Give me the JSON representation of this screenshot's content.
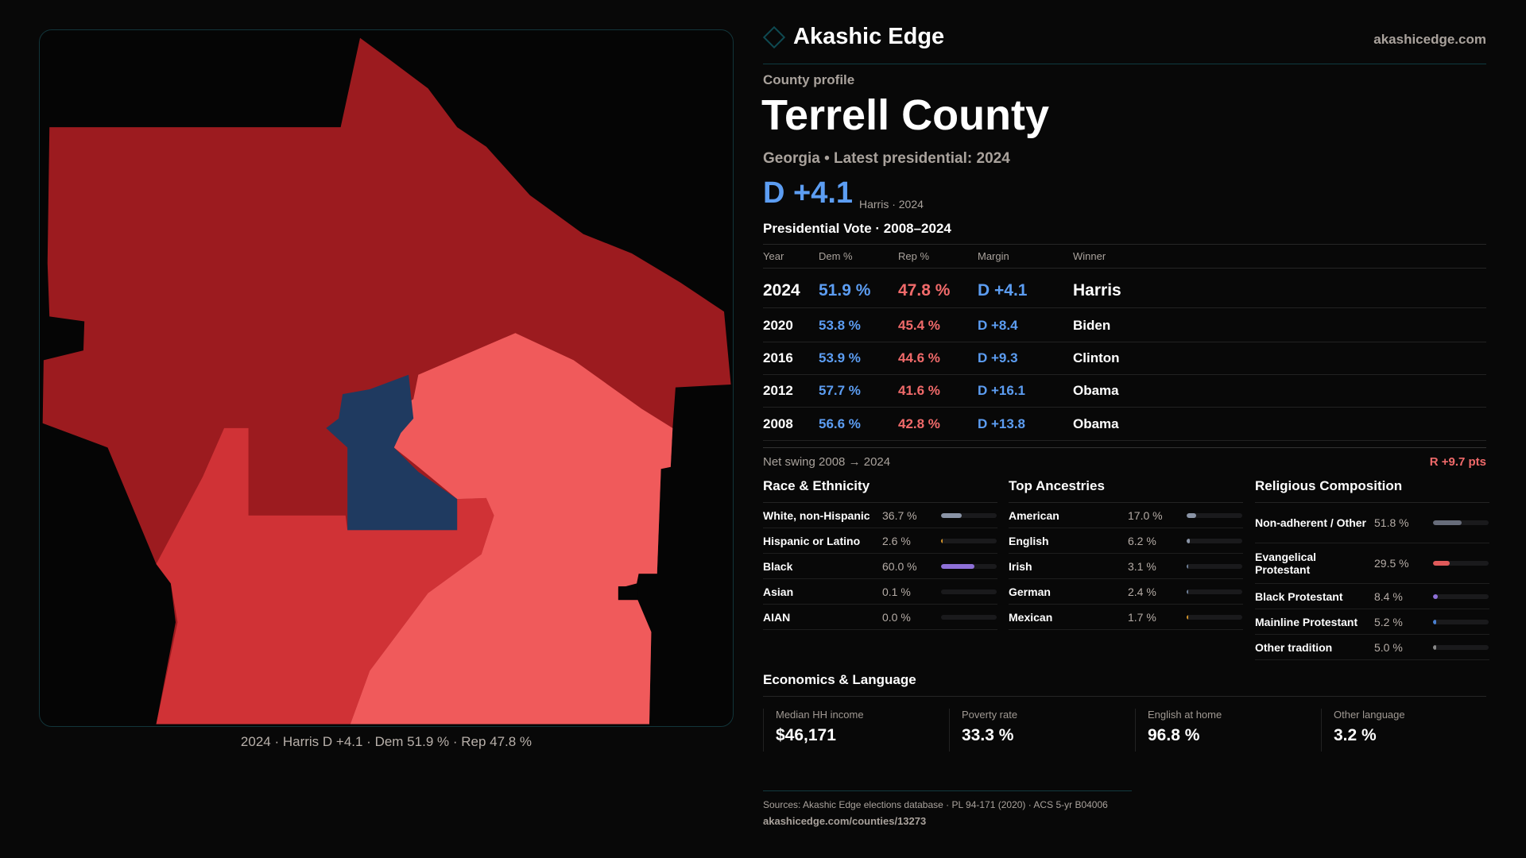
{
  "brand": {
    "name": "Akashic Edge",
    "site": "akashicedge.com"
  },
  "map": {
    "caption": "2024 · Harris D +4.1 · Dem 51.9 % · Rep 47.8 %",
    "colors": {
      "dark_red": "#9c1b1f",
      "mid_red": "#d03236",
      "light_red": "#f05a5b",
      "blue": "#1f3a60"
    }
  },
  "profile": {
    "kicker": "County profile",
    "title": "Terrell County",
    "subtitle": "Georgia • Latest presidential: 2024",
    "margin": "D +4.1",
    "margin_note": "Harris · 2024"
  },
  "votes": {
    "heading": "Presidential Vote · 2008–2024",
    "headers": [
      "Year",
      "Dem %",
      "Rep %",
      "Margin",
      "Winner"
    ],
    "rows": [
      {
        "year": "2024",
        "dem": "51.9 %",
        "rep": "47.8 %",
        "margin": "D +4.1",
        "winner": "Harris"
      },
      {
        "year": "2020",
        "dem": "53.8 %",
        "rep": "45.4 %",
        "margin": "D +8.4",
        "winner": "Biden"
      },
      {
        "year": "2016",
        "dem": "53.9 %",
        "rep": "44.6 %",
        "margin": "D +9.3",
        "winner": "Clinton"
      },
      {
        "year": "2012",
        "dem": "57.7 %",
        "rep": "41.6 %",
        "margin": "D +16.1",
        "winner": "Obama"
      },
      {
        "year": "2008",
        "dem": "56.6 %",
        "rep": "42.8 %",
        "margin": "D +13.8",
        "winner": "Obama"
      }
    ],
    "swing_label": "Net swing 2008 → 2024",
    "swing_value": "R +9.7 pts"
  },
  "race": {
    "heading": "Race & Ethnicity",
    "items": [
      {
        "label": "White, non-Hispanic",
        "value": "36.7 %",
        "pct": 36.7,
        "color": "#8a94a6"
      },
      {
        "label": "Hispanic or Latino",
        "value": "2.6 %",
        "pct": 2.6,
        "color": "#d6962a"
      },
      {
        "label": "Black",
        "value": "60.0 %",
        "pct": 60.0,
        "color": "#8e70d8"
      },
      {
        "label": "Asian",
        "value": "0.1 %",
        "pct": 0.1,
        "color": "#555"
      },
      {
        "label": "AIAN",
        "value": "0.0 %",
        "pct": 0.0,
        "color": "#555"
      }
    ]
  },
  "ancestry": {
    "heading": "Top Ancestries",
    "items": [
      {
        "label": "American",
        "value": "17.0 %",
        "pct": 17.0,
        "color": "#8a94a6"
      },
      {
        "label": "English",
        "value": "6.2 %",
        "pct": 6.2,
        "color": "#8a94a6"
      },
      {
        "label": "Irish",
        "value": "3.1 %",
        "pct": 3.1,
        "color": "#6f8098"
      },
      {
        "label": "German",
        "value": "2.4 %",
        "pct": 2.4,
        "color": "#6f8098"
      },
      {
        "label": "Mexican",
        "value": "1.7 %",
        "pct": 1.7,
        "color": "#d6962a"
      }
    ]
  },
  "religion": {
    "heading": "Religious Composition",
    "items": [
      {
        "label": "Non-adherent / Other",
        "value": "51.8 %",
        "pct": 51.8,
        "color": "#676c7a"
      },
      {
        "label": "Evangelical Protestant",
        "value": "29.5 %",
        "pct": 29.5,
        "color": "#e05a5a"
      },
      {
        "label": "Black Protestant",
        "value": "8.4 %",
        "pct": 8.4,
        "color": "#8e70d8"
      },
      {
        "label": "Mainline Protestant",
        "value": "5.2 %",
        "pct": 5.2,
        "color": "#4a80d0"
      },
      {
        "label": "Other tradition",
        "value": "5.0 %",
        "pct": 5.0,
        "color": "#888"
      }
    ]
  },
  "economics": {
    "heading": "Economics & Language",
    "cards": [
      {
        "label": "Median HH income",
        "value": "$46,171"
      },
      {
        "label": "Poverty rate",
        "value": "33.3 %"
      },
      {
        "label": "English at home",
        "value": "96.8 %"
      },
      {
        "label": "Other language",
        "value": "3.2 %"
      }
    ]
  },
  "footer": {
    "sources": "Sources: Akashic Edge elections database · PL 94-171 (2020) · ACS 5-yr B04006",
    "url": "akashicedge.com/counties/13273"
  }
}
